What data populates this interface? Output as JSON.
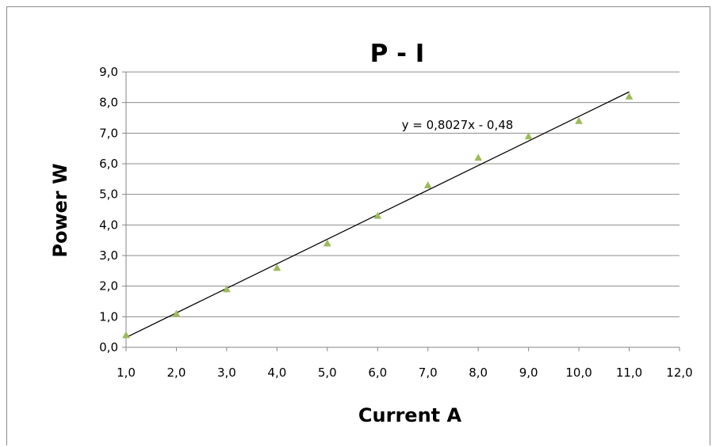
{
  "chart_data": {
    "type": "scatter",
    "title": "P - I",
    "xlabel": "Current A",
    "ylabel": "Power W",
    "xlim": [
      1.0,
      12.0
    ],
    "ylim": [
      0.0,
      9.0
    ],
    "x_ticks": [
      "1,0",
      "2,0",
      "3,0",
      "4,0",
      "5,0",
      "6,0",
      "7,0",
      "8,0",
      "9,0",
      "10,0",
      "11,0",
      "12,0"
    ],
    "y_ticks": [
      "0,0",
      "1,0",
      "2,0",
      "3,0",
      "4,0",
      "5,0",
      "6,0",
      "7,0",
      "8,0",
      "9,0"
    ],
    "grid": "horizontal",
    "legend": "none",
    "series": [
      {
        "marker": "triangle",
        "color": "#9bbb59",
        "x": [
          1,
          2,
          3,
          4,
          5,
          6,
          7,
          8,
          9,
          10,
          11
        ],
        "y": [
          0.4,
          1.1,
          1.9,
          2.6,
          3.4,
          4.3,
          5.3,
          6.2,
          6.9,
          7.4,
          8.2
        ]
      }
    ],
    "trendline": {
      "type": "linear",
      "slope": 0.8027,
      "intercept": -0.48,
      "x_range": [
        1,
        11
      ],
      "label": "y = 0,8027x - 0,48",
      "color": "#000000"
    }
  }
}
